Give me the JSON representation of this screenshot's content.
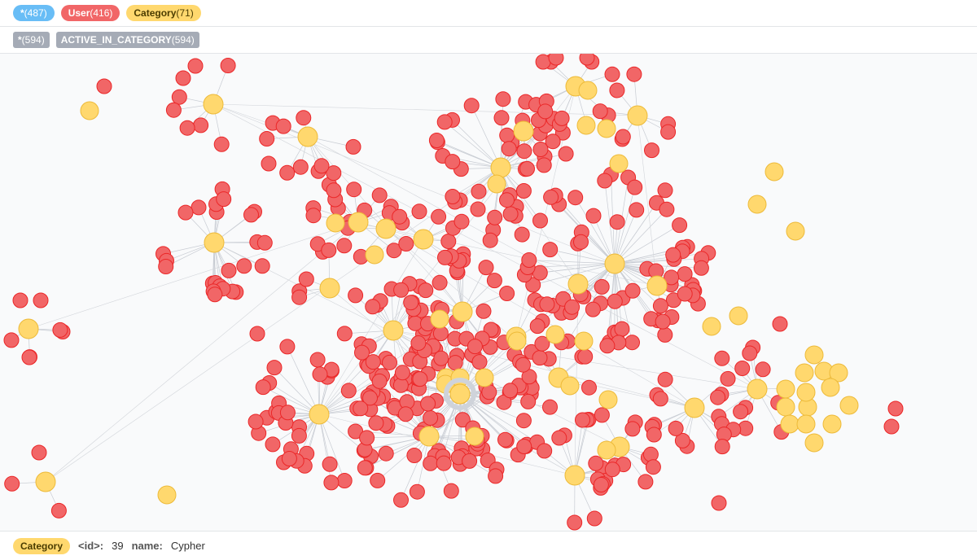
{
  "label_bar": {
    "all_nodes": {
      "name": "*",
      "count": "(487)"
    },
    "user": {
      "name": "User",
      "count": "(416)"
    },
    "category": {
      "name": "Category",
      "count": "(71)"
    }
  },
  "rel_bar": {
    "all_rels": {
      "name": "*",
      "count": "(594)"
    },
    "active_in_category": {
      "name": "ACTIVE_IN_CATEGORY",
      "count": "(594)"
    }
  },
  "status": {
    "label": "Category",
    "id_key": "<id>:",
    "id_value": "39",
    "name_key": "name:",
    "name_value": "Cypher"
  },
  "colors": {
    "user_node": "#f16667",
    "user_stroke": "#eb2728",
    "category_node": "#ffd86e",
    "category_stroke": "#edba39",
    "all_pill": "#68bdf6",
    "rel_pill": "#a5abb6"
  }
}
